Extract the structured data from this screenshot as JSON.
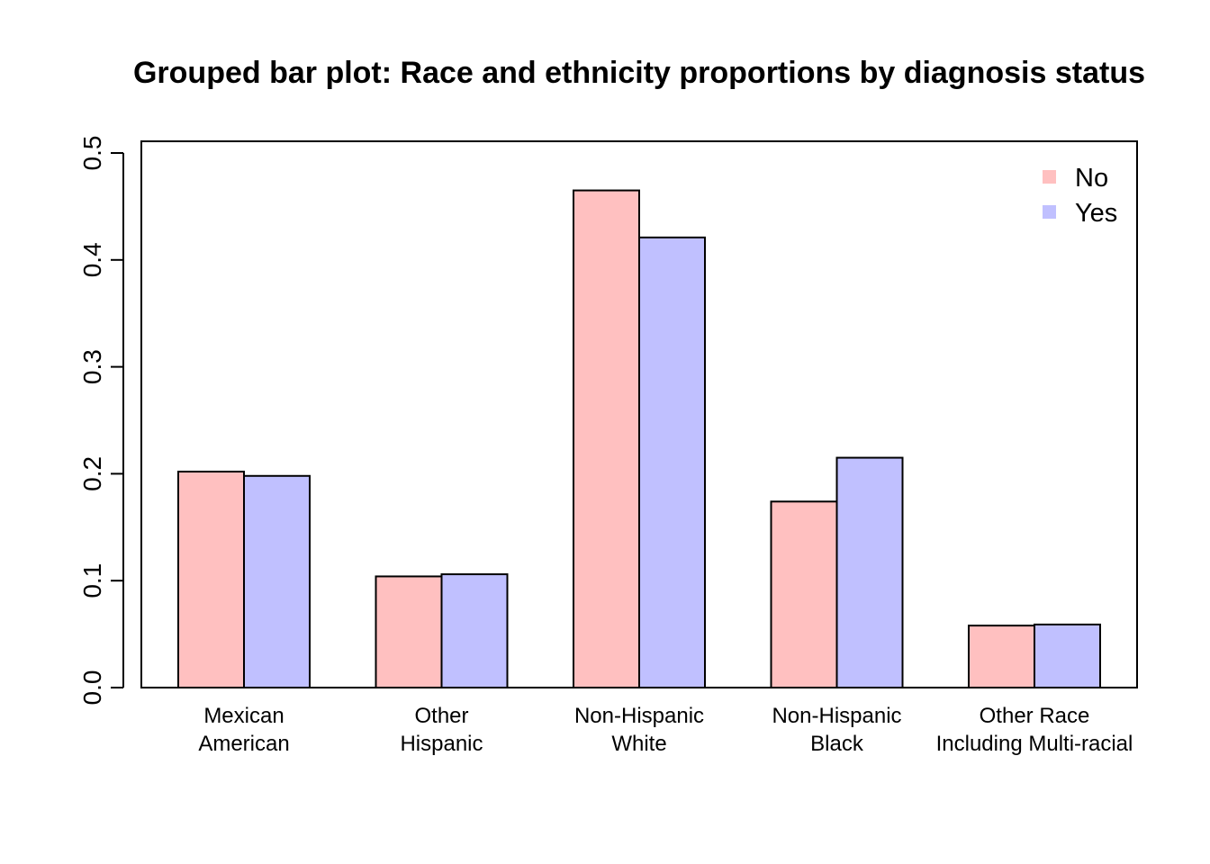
{
  "chart_data": {
    "type": "bar",
    "title": "Grouped bar plot: Race and ethnicity proportions by diagnosis status",
    "xlabel": "",
    "ylabel": "",
    "categories": [
      [
        "Mexican",
        "American"
      ],
      [
        "Other",
        "Hispanic"
      ],
      [
        "Non-Hispanic",
        "White"
      ],
      [
        "Non-Hispanic",
        "Black"
      ],
      [
        "Other Race",
        "Including Multi-racial"
      ]
    ],
    "series": [
      {
        "name": "No",
        "color": "#ffc0c0",
        "values": [
          0.202,
          0.104,
          0.465,
          0.174,
          0.058
        ]
      },
      {
        "name": "Yes",
        "color": "#c0c0ff",
        "values": [
          0.198,
          0.106,
          0.421,
          0.215,
          0.059
        ]
      }
    ],
    "ylim": [
      0,
      0.5
    ],
    "yticks": [
      "0.0",
      "0.1",
      "0.2",
      "0.3",
      "0.4",
      "0.5"
    ],
    "grid": false,
    "legend_position": "top-right"
  }
}
